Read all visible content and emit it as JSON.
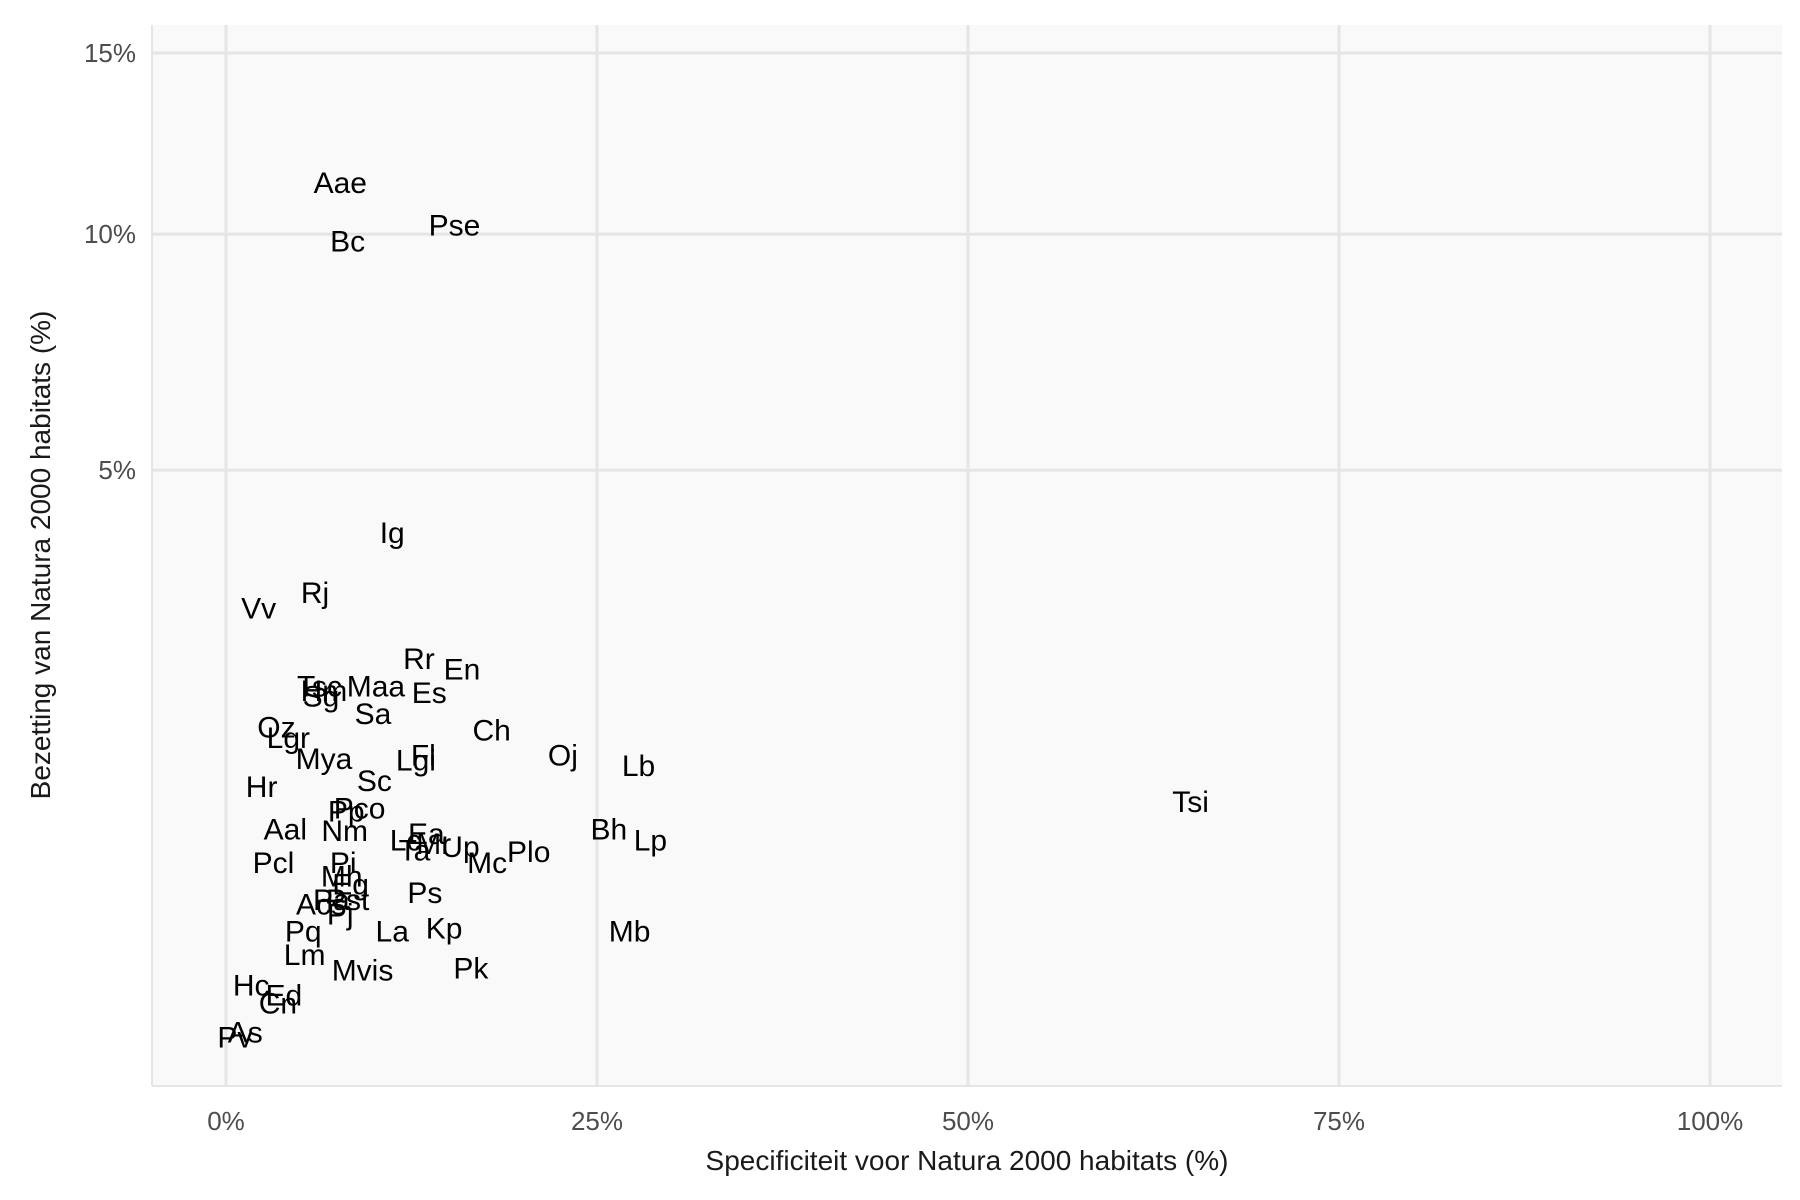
{
  "chart_data": {
    "type": "scatter",
    "title": "",
    "xlabel": "Specificiteit voor Natura 2000 habitats (%)",
    "ylabel": "Bezetting van Natura 2000 habitats (%)",
    "x_scale": "linear",
    "y_scale": "sqrt",
    "xlim": [
      -0.05,
      1.05
    ],
    "ylim": [
      0,
      0.17
    ],
    "x_ticks": [
      {
        "value": 0,
        "label": "0%"
      },
      {
        "value": 0.25,
        "label": "25%"
      },
      {
        "value": 0.5,
        "label": "50%"
      },
      {
        "value": 0.75,
        "label": "75%"
      },
      {
        "value": 1.0,
        "label": "100%"
      }
    ],
    "y_ticks": [
      {
        "value": 0.05,
        "label": "5%"
      },
      {
        "value": 0.1,
        "label": "10%"
      },
      {
        "value": 0.15,
        "label": "15%"
      }
    ],
    "grid": true,
    "legend": "none",
    "colors": {
      "panel_background": "#f9f9f9",
      "grid": "#e5e5e5",
      "point_label": "#000000"
    },
    "points": [
      {
        "label": "Aae",
        "x": 0.077,
        "y": 0.113
      },
      {
        "label": "Bc",
        "x": 0.082,
        "y": 0.098
      },
      {
        "label": "Pse",
        "x": 0.154,
        "y": 0.102
      },
      {
        "label": "Ig",
        "x": 0.112,
        "y": 0.0395
      },
      {
        "label": "Rj",
        "x": 0.06,
        "y": 0.0307
      },
      {
        "label": "Vv",
        "x": 0.022,
        "y": 0.0286
      },
      {
        "label": "Rr",
        "x": 0.13,
        "y": 0.0223
      },
      {
        "label": "En",
        "x": 0.159,
        "y": 0.0211
      },
      {
        "label": "Tsc",
        "x": 0.063,
        "y": 0.0192
      },
      {
        "label": "Hm",
        "x": 0.066,
        "y": 0.0187
      },
      {
        "label": "Sg",
        "x": 0.064,
        "y": 0.0181
      },
      {
        "label": "Maa",
        "x": 0.101,
        "y": 0.0192
      },
      {
        "label": "Es",
        "x": 0.137,
        "y": 0.0185
      },
      {
        "label": "Sa",
        "x": 0.099,
        "y": 0.0163
      },
      {
        "label": "Oz",
        "x": 0.034,
        "y": 0.015
      },
      {
        "label": "Ch",
        "x": 0.179,
        "y": 0.0147
      },
      {
        "label": "Lgr",
        "x": 0.042,
        "y": 0.014
      },
      {
        "label": "Oj",
        "x": 0.227,
        "y": 0.0124
      },
      {
        "label": "Fl",
        "x": 0.133,
        "y": 0.0124
      },
      {
        "label": "Lgi",
        "x": 0.128,
        "y": 0.012
      },
      {
        "label": "Mya",
        "x": 0.066,
        "y": 0.0121
      },
      {
        "label": "Lb",
        "x": 0.278,
        "y": 0.0115
      },
      {
        "label": "Sc",
        "x": 0.1,
        "y": 0.0103
      },
      {
        "label": "Hr",
        "x": 0.024,
        "y": 0.0098
      },
      {
        "label": "Tsi",
        "x": 0.65,
        "y": 0.0087
      },
      {
        "label": "Pp",
        "x": 0.081,
        "y": 0.008
      },
      {
        "label": "Pco",
        "x": 0.09,
        "y": 0.0082
      },
      {
        "label": "Bh",
        "x": 0.258,
        "y": 0.0068
      },
      {
        "label": "Aal",
        "x": 0.04,
        "y": 0.0068
      },
      {
        "label": "Nm",
        "x": 0.08,
        "y": 0.0067
      },
      {
        "label": "Ea",
        "x": 0.135,
        "y": 0.0065
      },
      {
        "label": "Lp",
        "x": 0.286,
        "y": 0.0061
      },
      {
        "label": "Lc",
        "x": 0.121,
        "y": 0.0061
      },
      {
        "label": "Mr",
        "x": 0.14,
        "y": 0.0059
      },
      {
        "label": "Up",
        "x": 0.158,
        "y": 0.0057
      },
      {
        "label": "Ta",
        "x": 0.127,
        "y": 0.0055
      },
      {
        "label": "Plo",
        "x": 0.204,
        "y": 0.0054
      },
      {
        "label": "Pcl",
        "x": 0.032,
        "y": 0.0048
      },
      {
        "label": "Pi",
        "x": 0.079,
        "y": 0.0048
      },
      {
        "label": "Mc",
        "x": 0.176,
        "y": 0.0048
      },
      {
        "label": "Mh",
        "x": 0.078,
        "y": 0.0041
      },
      {
        "label": "Eg",
        "x": 0.084,
        "y": 0.0037
      },
      {
        "label": "Ps",
        "x": 0.134,
        "y": 0.0033
      },
      {
        "label": "Pst",
        "x": 0.082,
        "y": 0.003
      },
      {
        "label": "Pa",
        "x": 0.071,
        "y": 0.003
      },
      {
        "label": "Acs",
        "x": 0.064,
        "y": 0.0028
      },
      {
        "label": "Pj",
        "x": 0.077,
        "y": 0.0024
      },
      {
        "label": "Kp",
        "x": 0.147,
        "y": 0.0019
      },
      {
        "label": "Mb",
        "x": 0.272,
        "y": 0.0018
      },
      {
        "label": "Pq",
        "x": 0.052,
        "y": 0.0018
      },
      {
        "label": "La",
        "x": 0.112,
        "y": 0.0018
      },
      {
        "label": "Lm",
        "x": 0.053,
        "y": 0.0011
      },
      {
        "label": "Pk",
        "x": 0.165,
        "y": 0.00078
      },
      {
        "label": "Mvis",
        "x": 0.092,
        "y": 0.00073
      },
      {
        "label": "Hc",
        "x": 0.017,
        "y": 0.00045
      },
      {
        "label": "Ed",
        "x": 0.039,
        "y": 0.0003
      },
      {
        "label": "Cn",
        "x": 0.035,
        "y": 0.0002
      },
      {
        "label": "As",
        "x": 0.013,
        "y": 8e-06
      },
      {
        "label": "Pv",
        "x": 0.006,
        "y": 5e-07
      }
    ]
  }
}
